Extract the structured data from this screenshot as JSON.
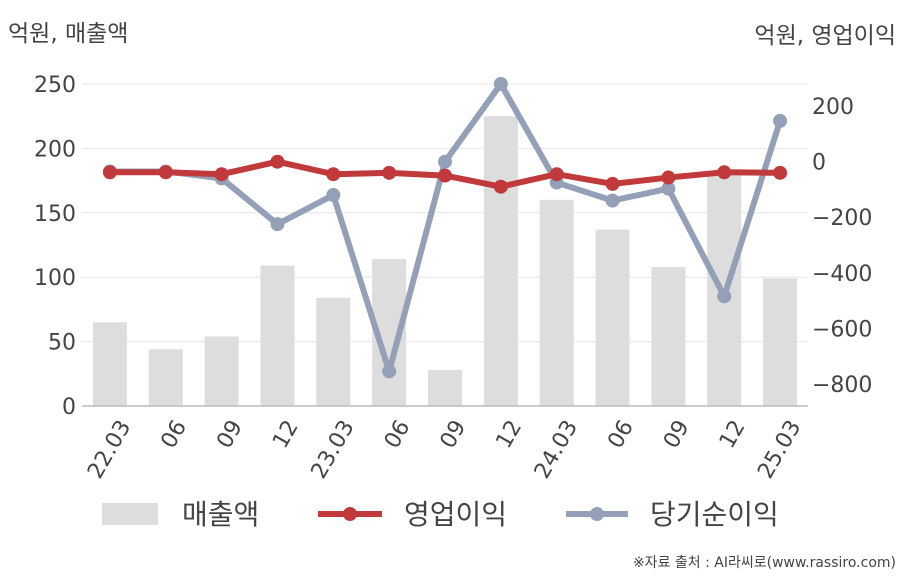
{
  "chart_data": {
    "type": "bar+line",
    "left_unit_label": "억원, 매출액",
    "right_unit_label": "억원, 영업이익",
    "categories": [
      "22.03",
      "06",
      "09",
      "12",
      "23.03",
      "06",
      "09",
      "12",
      "24.03",
      "06",
      "09",
      "12",
      "25.03"
    ],
    "y_left": {
      "min": 0,
      "max": 250,
      "ticks": [
        0,
        50,
        100,
        150,
        200,
        250
      ]
    },
    "y_right": {
      "min": -880,
      "max": 280,
      "ticks": [
        200,
        0,
        -200,
        -400,
        -600,
        -800
      ]
    },
    "series": [
      {
        "name": "매출액",
        "type": "bar",
        "axis": "left",
        "color": "#dddddd",
        "values": [
          65,
          44,
          54,
          109,
          84,
          114,
          28,
          225,
          160,
          137,
          108,
          179,
          99
        ]
      },
      {
        "name": "영업이익",
        "type": "line",
        "axis": "right",
        "color": "#c0393b",
        "values": [
          -38,
          -38,
          -45,
          0,
          -45,
          -40,
          -50,
          -90,
          -45,
          -80,
          -57,
          -38,
          -40
        ]
      },
      {
        "name": "당기순이익",
        "type": "line",
        "axis": "right",
        "color": "#93a0b8",
        "values": [
          -35,
          -35,
          -60,
          -225,
          -120,
          -755,
          0,
          280,
          -75,
          -140,
          -97,
          -485,
          147
        ]
      }
    ],
    "grid": true,
    "legend": "bottom"
  },
  "source_text": "※자료 출처 : AI라씨로(www.rassiro.com)"
}
